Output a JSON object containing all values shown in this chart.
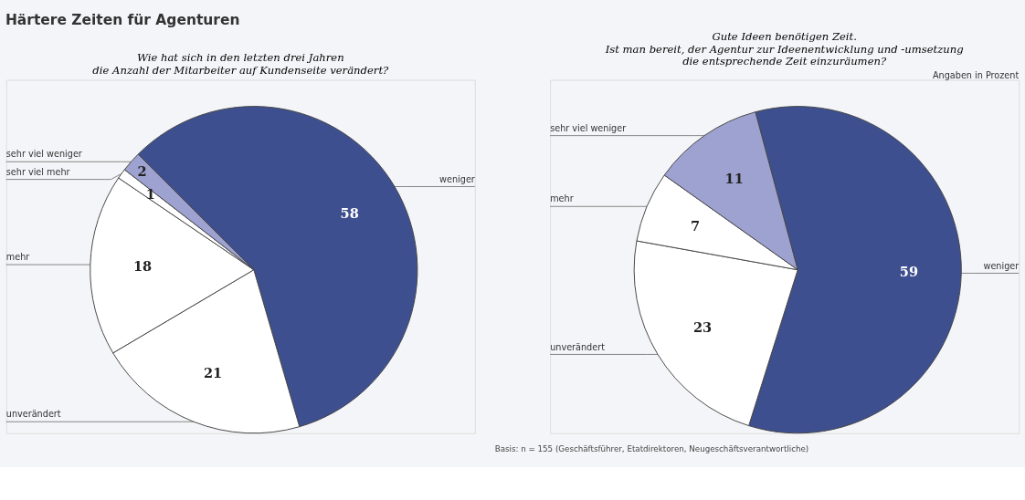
{
  "chart_data": [
    {
      "type": "pie",
      "title": "Härtere Zeiten für Agenturen",
      "subtitle": "Wie hat sich in den letzten drei Jahren\ndie Anzahl der Mitarbeiter auf Kundenseite verändert?",
      "categories": [
        "weniger",
        "unverändert",
        "mehr",
        "sehr viel mehr",
        "sehr viel weniger"
      ],
      "values": [
        58,
        21,
        18,
        1,
        2
      ],
      "colors": [
        "#3d4f8f",
        "#ffffff",
        "#ffffff",
        "#ffffff",
        "#9ea2d0"
      ],
      "data_labels": true
    },
    {
      "type": "pie",
      "subtitle": "Gute Ideen benötigen Zeit.\nIst man bereit, der Agentur zur Ideenentwicklung und -umsetzung\ndie entsprechende Zeit einzuräumen?",
      "categories": [
        "weniger",
        "unverändert",
        "mehr",
        "sehr viel weniger"
      ],
      "values": [
        59,
        23,
        7,
        11
      ],
      "colors": [
        "#3d4f8f",
        "#ffffff",
        "#ffffff",
        "#9ea2d0"
      ],
      "data_labels": true,
      "annotations": [
        "Angaben in Prozent",
        "Basis: n = 155 (Geschäftsführer, Etatdirektoren, Neugeschäftsverantwortliche)"
      ]
    }
  ]
}
